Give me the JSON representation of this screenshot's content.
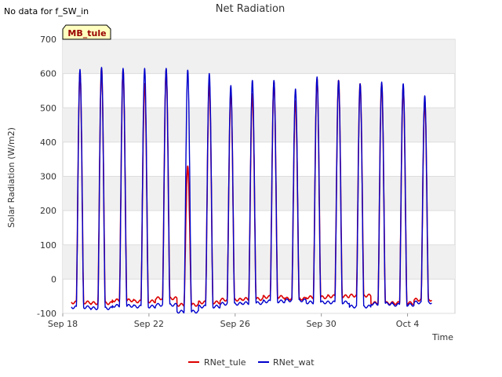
{
  "chart_data": {
    "type": "line",
    "title": "Net Radiation",
    "no_data_note": "No data for f_SW_in",
    "site_badge": "MB_tule",
    "xlabel": "Time",
    "ylabel": "Solar Radiation (W/m2)",
    "ylim": [
      -100,
      700
    ],
    "xlim_days": [
      0,
      18.2
    ],
    "yticks": [
      -100,
      0,
      100,
      200,
      300,
      400,
      500,
      600,
      700
    ],
    "xticks": [
      {
        "day": 0,
        "label": "Sep 18"
      },
      {
        "day": 4,
        "label": "Sep 22"
      },
      {
        "day": 8,
        "label": "Sep 26"
      },
      {
        "day": 12,
        "label": "Sep 30"
      },
      {
        "day": 16,
        "label": "Oct 4"
      }
    ],
    "series": [
      {
        "name": "RNet_tule",
        "color": "#dd0000",
        "daily_peak": [
          605,
          615,
          610,
          570,
          610,
          330,
          570,
          545,
          540,
          575,
          520,
          585,
          580,
          570,
          570,
          560,
          520
        ],
        "night_base": [
          -68,
          -70,
          -62,
          -65,
          -56,
          -75,
          -68,
          -60,
          -58,
          -52,
          -57,
          -53,
          -50,
          -48,
          -70,
          -70,
          -60
        ]
      },
      {
        "name": "RNet_wat",
        "color": "#0000cc",
        "daily_peak": [
          612,
          618,
          615,
          615,
          615,
          610,
          600,
          565,
          580,
          580,
          555,
          590,
          580,
          570,
          575,
          570,
          535
        ],
        "night_base": [
          -82,
          -85,
          -78,
          -80,
          -75,
          -95,
          -80,
          -72,
          -70,
          -65,
          -62,
          -68,
          -68,
          -80,
          -72,
          -75,
          -68
        ]
      }
    ],
    "legend": [
      "RNet_tule",
      "RNet_wat"
    ]
  }
}
